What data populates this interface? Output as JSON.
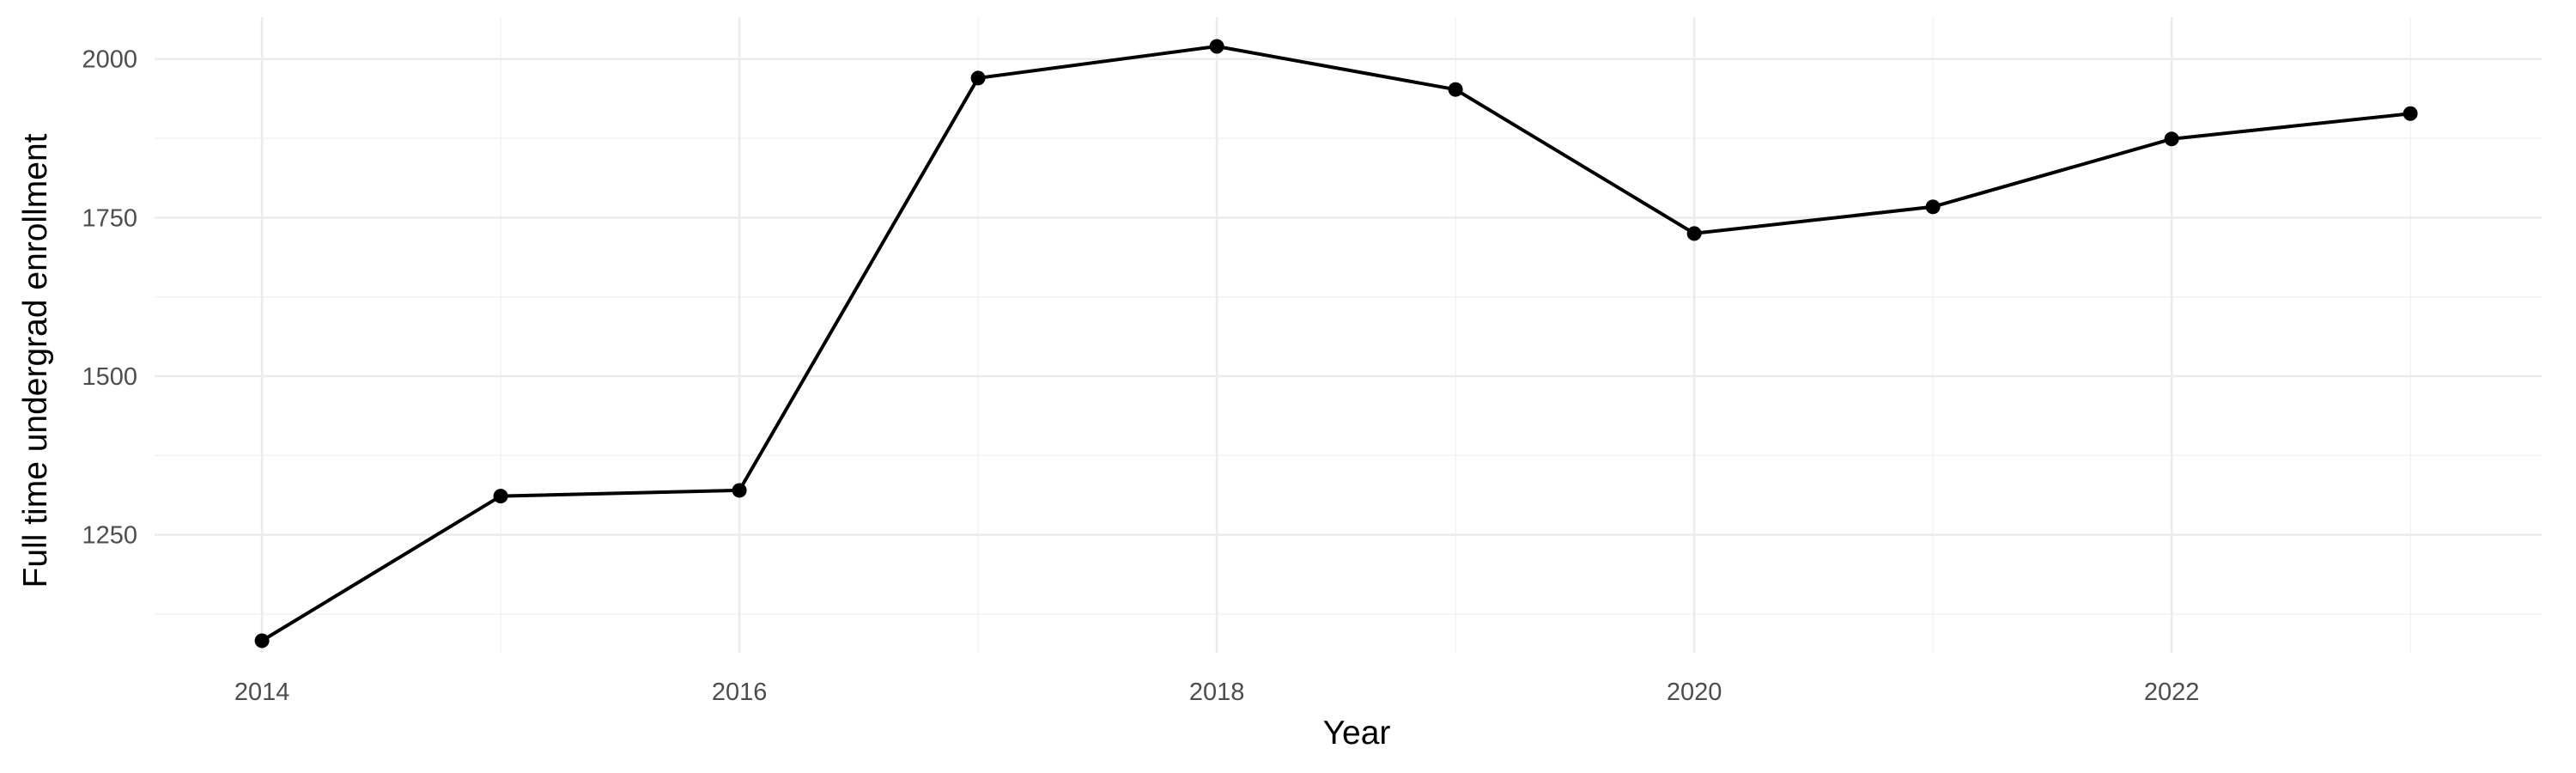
{
  "chart_data": {
    "type": "line",
    "title": "",
    "xlabel": "Year",
    "ylabel": "Full time undergrad enrollment",
    "x": [
      2014,
      2015,
      2016,
      2017,
      2018,
      2019,
      2020,
      2021,
      2022,
      2023
    ],
    "series": [
      {
        "values": [
          1083,
          1311,
          1320,
          1970,
          2020,
          1952,
          1725,
          1767,
          1874,
          1914
        ]
      }
    ],
    "xlim": [
      2013.55,
      2023.55
    ],
    "ylim": [
      1064,
      2066
    ],
    "x_ticks": [
      2014,
      2016,
      2018,
      2020,
      2022
    ],
    "y_ticks": [
      1250,
      1500,
      1750,
      2000
    ],
    "grid": true,
    "legend": "none",
    "line_color": "#000000"
  }
}
